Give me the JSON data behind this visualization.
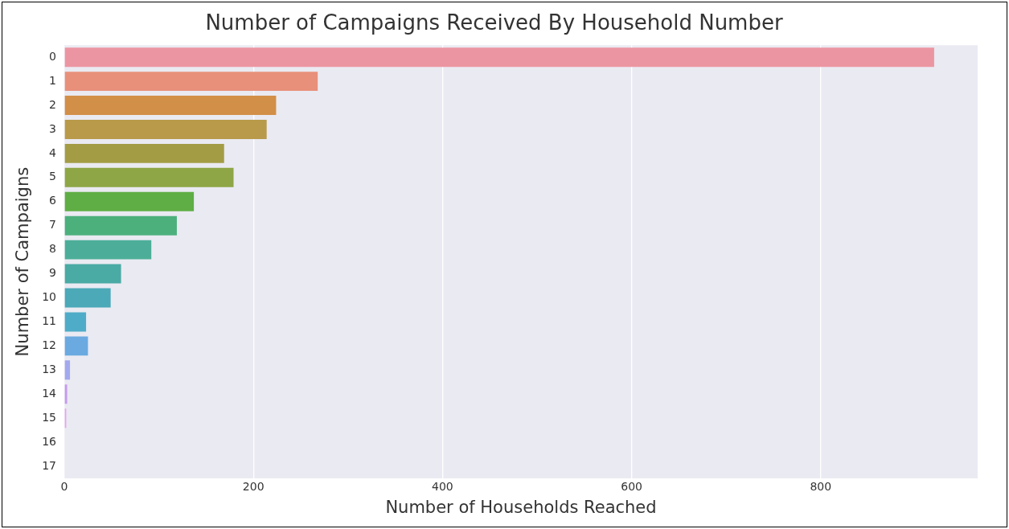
{
  "chart_data": {
    "type": "bar",
    "orientation": "horizontal",
    "title": "Number of Campaigns Received By Household Number",
    "xlabel": "Number of Households Reached",
    "ylabel": "Number of Campaigns",
    "categories": [
      "0",
      "1",
      "2",
      "3",
      "4",
      "5",
      "6",
      "7",
      "8",
      "9",
      "10",
      "11",
      "12",
      "13",
      "14",
      "15",
      "16",
      "17"
    ],
    "values": [
      920,
      268,
      224,
      214,
      169,
      179,
      137,
      119,
      92,
      60,
      49,
      23,
      25,
      6,
      3,
      2,
      0,
      0
    ],
    "colors": [
      "#ec95a2",
      "#e8907a",
      "#d28f48",
      "#b89a4a",
      "#a39c45",
      "#8ea645",
      "#5fae45",
      "#4cb07c",
      "#4cae98",
      "#4aaaa4",
      "#4ba9b8",
      "#4facc8",
      "#6aaae0",
      "#a3a9ee",
      "#c79af0",
      "#eba0ef",
      "#ef98d8",
      "#f096c0"
    ],
    "xlim": [
      0,
      966
    ],
    "xticks": [
      0,
      200,
      400,
      600,
      800
    ],
    "grid": "x",
    "legend": false
  }
}
